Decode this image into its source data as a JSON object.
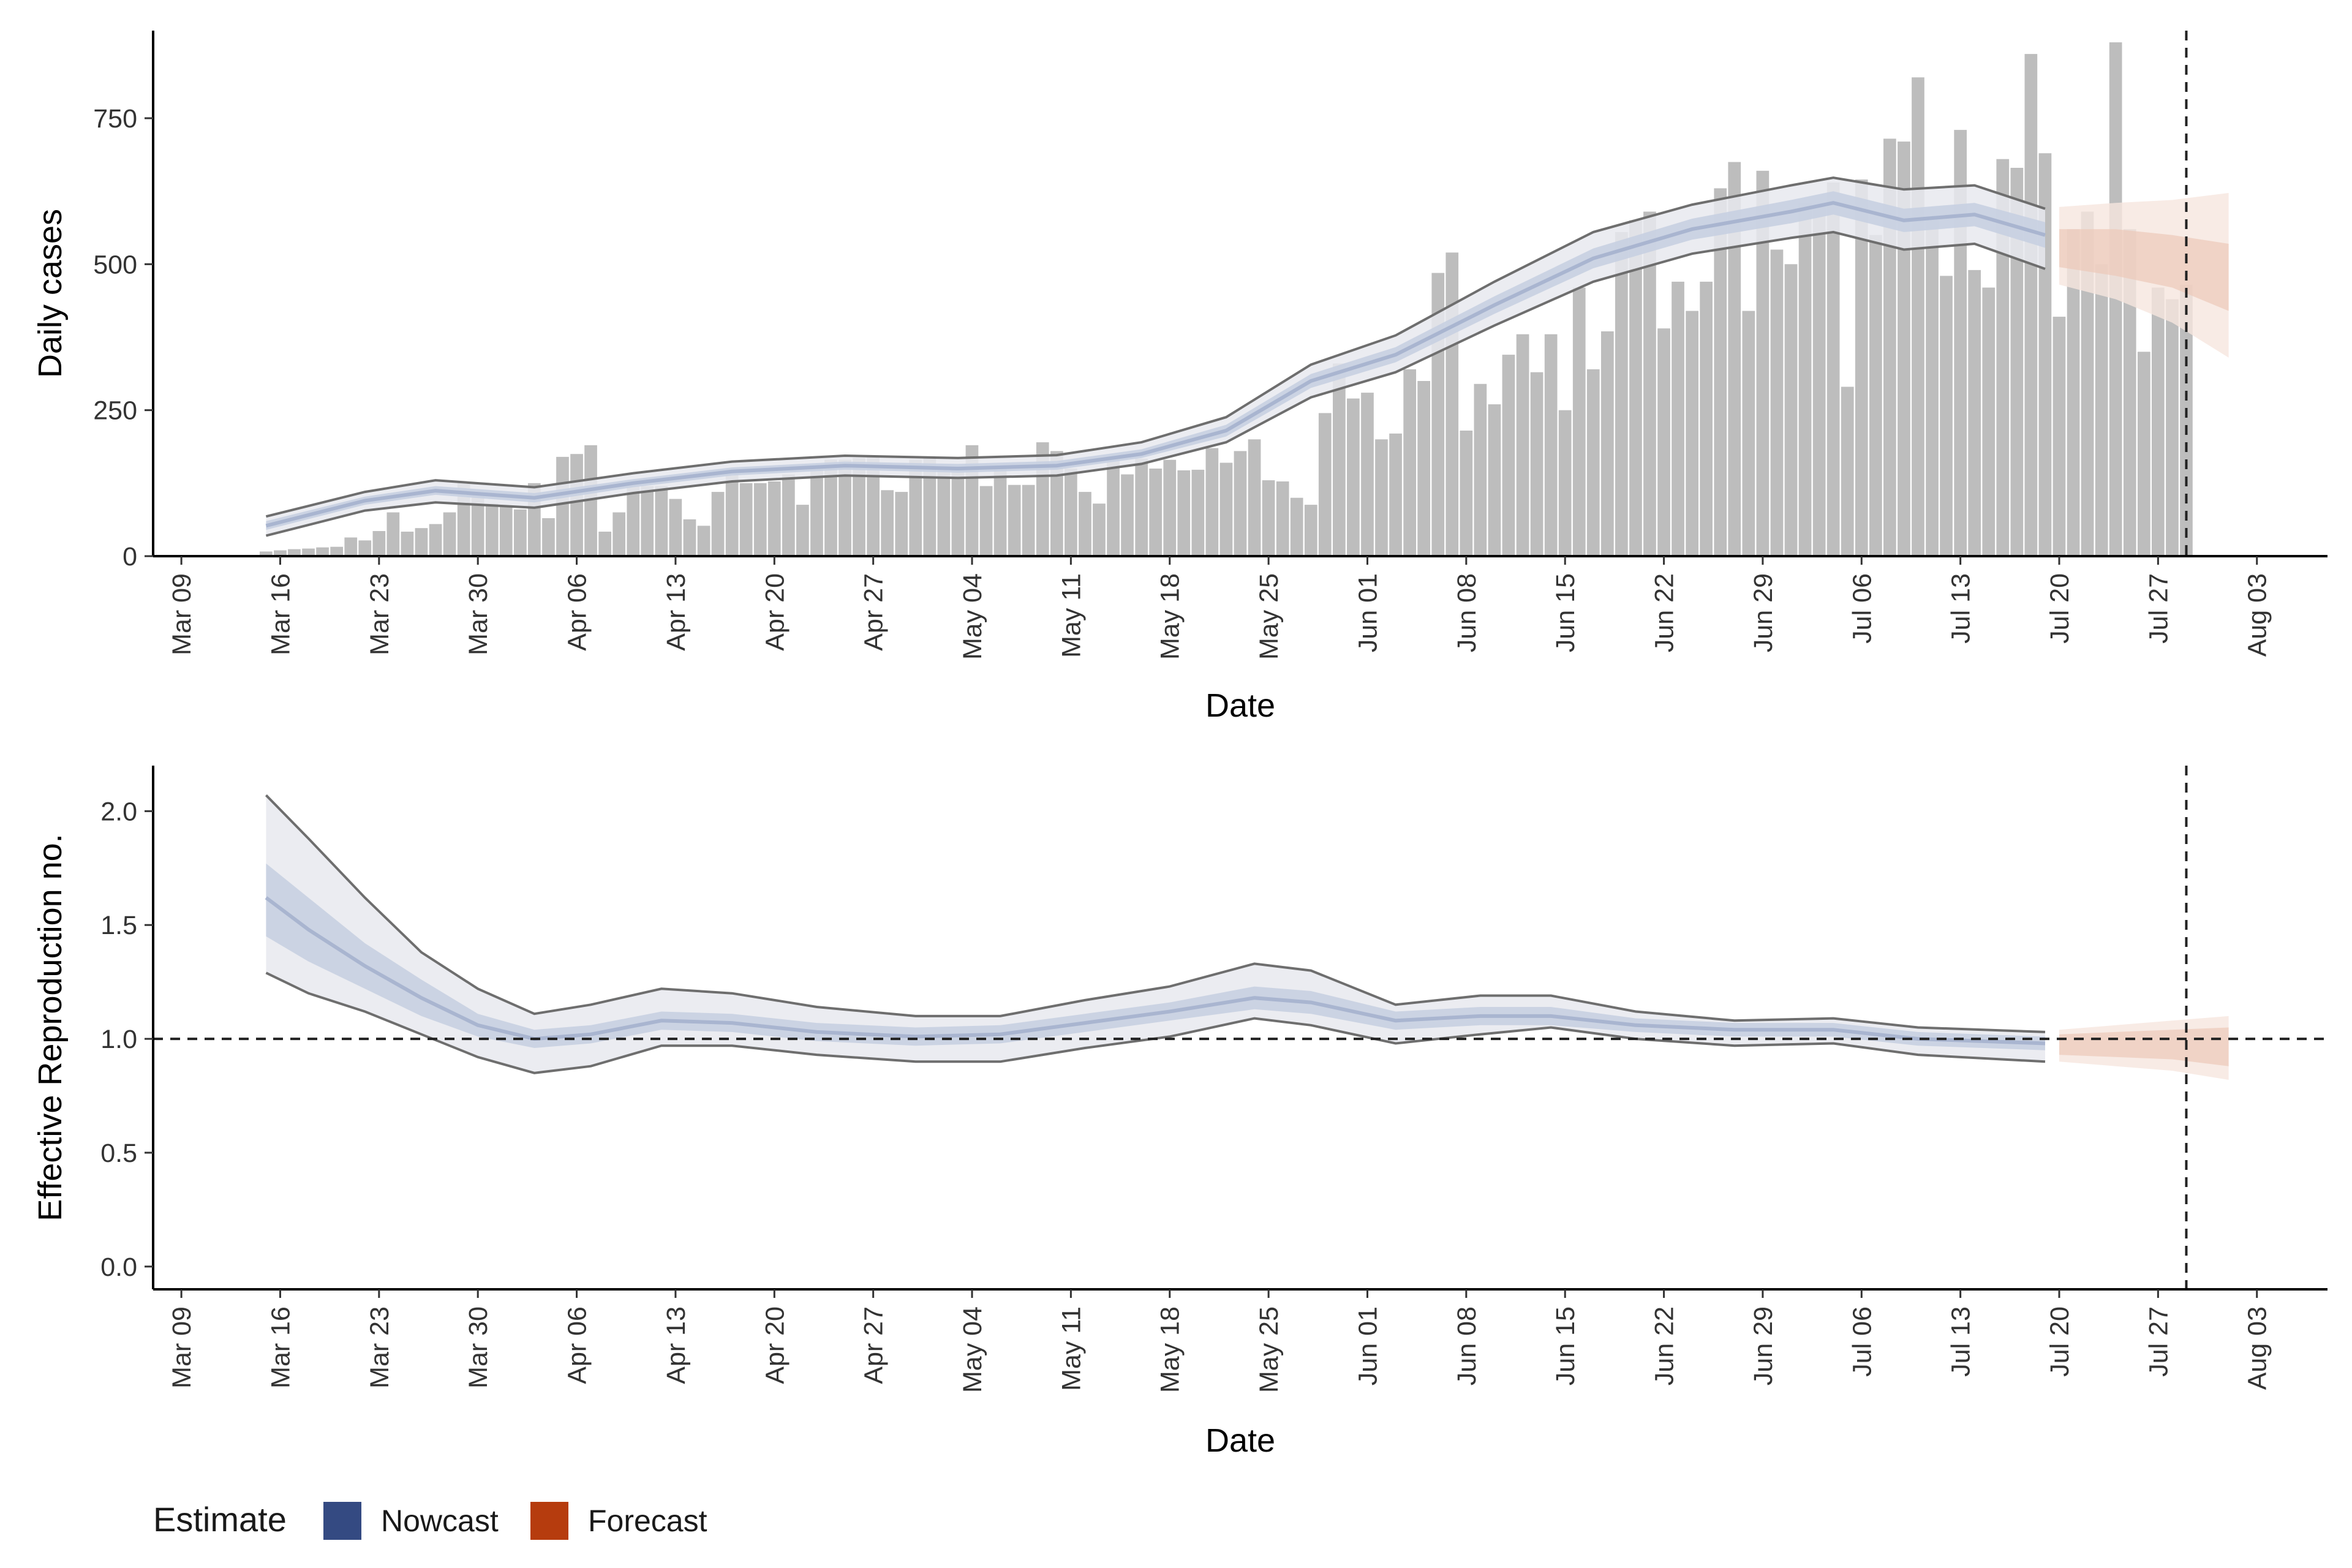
{
  "chart_data": [
    {
      "type": "bar",
      "xlabel": "Date",
      "ylabel": "Daily cases",
      "ylim": [
        0,
        900
      ],
      "yticks": [
        0,
        250,
        500,
        750
      ],
      "xlim": [
        "2020-03-07",
        "2020-08-08"
      ],
      "xticks": [
        "Mar 09",
        "Mar 16",
        "Mar 23",
        "Mar 30",
        "Apr 06",
        "Apr 13",
        "Apr 20",
        "Apr 27",
        "May 04",
        "May 11",
        "May 18",
        "May 25",
        "Jun 01",
        "Jun 08",
        "Jun 15",
        "Jun 22",
        "Jun 29",
        "Jul 06",
        "Jul 13",
        "Jul 20",
        "Jul 27",
        "Aug 03"
      ],
      "xticks_dates": [
        "2020-03-09",
        "2020-03-16",
        "2020-03-23",
        "2020-03-30",
        "2020-04-06",
        "2020-04-13",
        "2020-04-20",
        "2020-04-27",
        "2020-05-04",
        "2020-05-11",
        "2020-05-18",
        "2020-05-25",
        "2020-06-01",
        "2020-06-08",
        "2020-06-15",
        "2020-06-22",
        "2020-06-29",
        "2020-07-06",
        "2020-07-13",
        "2020-07-20",
        "2020-07-27",
        "2020-08-03"
      ],
      "bars": {
        "start_date": "2020-03-15",
        "values": [
          8,
          10,
          12,
          13,
          15,
          16,
          32,
          27,
          43,
          75,
          42,
          48,
          55,
          75,
          125,
          110,
          90,
          85,
          80,
          125,
          65,
          170,
          175,
          190,
          42,
          75,
          120,
          120,
          120,
          98,
          63,
          52,
          110,
          140,
          125,
          125,
          128,
          140,
          88,
          150,
          165,
          165,
          168,
          170,
          113,
          110,
          165,
          170,
          150,
          150,
          190,
          120,
          155,
          122,
          122,
          195,
          180,
          150,
          110,
          90,
          170,
          140,
          167,
          150,
          165,
          147,
          148,
          185,
          160,
          180,
          200,
          130,
          128,
          100,
          88,
          245,
          330,
          270,
          280,
          200,
          210,
          320,
          300,
          485,
          520,
          215,
          295,
          260,
          345,
          380,
          315,
          380,
          250,
          460,
          320,
          385,
          555,
          575,
          590,
          390,
          470,
          420,
          470,
          630,
          675,
          420,
          660,
          525,
          500,
          605,
          600,
          640,
          290,
          645,
          550,
          715,
          710,
          820,
          580,
          480,
          730,
          490,
          460,
          680,
          665,
          860,
          690,
          410,
          560,
          590,
          500,
          880,
          560,
          350,
          460,
          440,
          465
        ]
      },
      "series": [
        {
          "name": "Nowcast",
          "start_date": "2020-03-15",
          "x_dates": [
            "2020-03-15",
            "2020-03-22",
            "2020-03-27",
            "2020-04-03",
            "2020-04-10",
            "2020-04-17",
            "2020-04-25",
            "2020-05-03",
            "2020-05-10",
            "2020-05-16",
            "2020-05-22",
            "2020-05-28",
            "2020-06-03",
            "2020-06-10",
            "2020-06-17",
            "2020-06-24",
            "2020-07-01",
            "2020-07-04",
            "2020-07-09",
            "2020-07-14",
            "2020-07-19"
          ],
          "median": [
            52,
            95,
            112,
            100,
            125,
            145,
            155,
            150,
            155,
            175,
            215,
            300,
            345,
            430,
            510,
            560,
            590,
            605,
            575,
            585,
            550
          ],
          "ci50": [
            [
              45,
              60
            ],
            [
              88,
              102
            ],
            [
              105,
              120
            ],
            [
              92,
              108
            ],
            [
              118,
              132
            ],
            [
              138,
              152
            ],
            [
              148,
              162
            ],
            [
              143,
              158
            ],
            [
              148,
              163
            ],
            [
              168,
              183
            ],
            [
              205,
              225
            ],
            [
              288,
              312
            ],
            [
              332,
              358
            ],
            [
              415,
              445
            ],
            [
              493,
              527
            ],
            [
              542,
              578
            ],
            [
              570,
              610
            ],
            [
              585,
              625
            ],
            [
              555,
              595
            ],
            [
              565,
              605
            ],
            [
              528,
              572
            ]
          ],
          "ci90": [
            [
              35,
              68
            ],
            [
              78,
              110
            ],
            [
              92,
              130
            ],
            [
              83,
              118
            ],
            [
              108,
              142
            ],
            [
              128,
              162
            ],
            [
              138,
              172
            ],
            [
              134,
              168
            ],
            [
              138,
              173
            ],
            [
              158,
              195
            ],
            [
              195,
              238
            ],
            [
              272,
              328
            ],
            [
              315,
              378
            ],
            [
              395,
              470
            ],
            [
              470,
              555
            ],
            [
              518,
              602
            ],
            [
              545,
              635
            ],
            [
              555,
              648
            ],
            [
              525,
              628
            ],
            [
              535,
              635
            ],
            [
              492,
              595
            ]
          ]
        },
        {
          "name": "Forecast",
          "x_dates": [
            "2020-07-20",
            "2020-07-24",
            "2020-07-28",
            "2020-08-01"
          ],
          "median": [
            530,
            520,
            505,
            480
          ],
          "ci50": [
            [
              495,
              560
            ],
            [
              480,
              560
            ],
            [
              460,
              550
            ],
            [
              420,
              535
            ]
          ],
          "ci90": [
            [
              465,
              598
            ],
            [
              440,
              605
            ],
            [
              400,
              610
            ],
            [
              340,
              622
            ]
          ]
        }
      ],
      "vline_date": "2020-07-29",
      "hline": null
    },
    {
      "type": "line",
      "xlabel": "Date",
      "ylabel": "Effective Reproduction no.",
      "ylim": [
        -0.1,
        2.2
      ],
      "yticks": [
        0.0,
        0.5,
        1.0,
        1.5,
        2.0
      ],
      "ytick_labels": [
        "0.0",
        "0.5",
        "1.0",
        "1.5",
        "2.0"
      ],
      "xlim": [
        "2020-03-07",
        "2020-08-08"
      ],
      "xticks": [
        "Mar 09",
        "Mar 16",
        "Mar 23",
        "Mar 30",
        "Apr 06",
        "Apr 13",
        "Apr 20",
        "Apr 27",
        "May 04",
        "May 11",
        "May 18",
        "May 25",
        "Jun 01",
        "Jun 08",
        "Jun 15",
        "Jun 22",
        "Jun 29",
        "Jul 06",
        "Jul 13",
        "Jul 20",
        "Jul 27",
        "Aug 03"
      ],
      "xticks_dates": [
        "2020-03-09",
        "2020-03-16",
        "2020-03-23",
        "2020-03-30",
        "2020-04-06",
        "2020-04-13",
        "2020-04-20",
        "2020-04-27",
        "2020-05-04",
        "2020-05-11",
        "2020-05-18",
        "2020-05-25",
        "2020-06-01",
        "2020-06-08",
        "2020-06-15",
        "2020-06-22",
        "2020-06-29",
        "2020-07-06",
        "2020-07-13",
        "2020-07-20",
        "2020-07-27",
        "2020-08-03"
      ],
      "series": [
        {
          "name": "Nowcast",
          "x_dates": [
            "2020-03-15",
            "2020-03-18",
            "2020-03-22",
            "2020-03-26",
            "2020-03-30",
            "2020-04-03",
            "2020-04-07",
            "2020-04-12",
            "2020-04-17",
            "2020-04-23",
            "2020-04-30",
            "2020-05-06",
            "2020-05-12",
            "2020-05-18",
            "2020-05-24",
            "2020-05-28",
            "2020-06-03",
            "2020-06-09",
            "2020-06-14",
            "2020-06-20",
            "2020-06-27",
            "2020-07-04",
            "2020-07-10",
            "2020-07-19"
          ],
          "median": [
            1.62,
            1.48,
            1.32,
            1.18,
            1.06,
            1.0,
            1.02,
            1.08,
            1.07,
            1.03,
            1.01,
            1.02,
            1.07,
            1.12,
            1.18,
            1.16,
            1.08,
            1.1,
            1.1,
            1.06,
            1.04,
            1.04,
            1.0,
            0.98
          ],
          "ci50": [
            [
              1.45,
              1.77
            ],
            [
              1.34,
              1.62
            ],
            [
              1.22,
              1.42
            ],
            [
              1.1,
              1.26
            ],
            [
              1.01,
              1.11
            ],
            [
              0.96,
              1.04
            ],
            [
              0.98,
              1.06
            ],
            [
              1.04,
              1.12
            ],
            [
              1.03,
              1.11
            ],
            [
              0.99,
              1.07
            ],
            [
              0.97,
              1.05
            ],
            [
              0.98,
              1.06
            ],
            [
              1.03,
              1.11
            ],
            [
              1.08,
              1.16
            ],
            [
              1.13,
              1.23
            ],
            [
              1.11,
              1.21
            ],
            [
              1.04,
              1.12
            ],
            [
              1.06,
              1.14
            ],
            [
              1.06,
              1.14
            ],
            [
              1.03,
              1.09
            ],
            [
              1.01,
              1.07
            ],
            [
              1.01,
              1.07
            ],
            [
              0.97,
              1.03
            ],
            [
              0.95,
              1.01
            ]
          ],
          "ci90": [
            [
              1.29,
              2.07
            ],
            [
              1.2,
              1.88
            ],
            [
              1.12,
              1.62
            ],
            [
              1.02,
              1.38
            ],
            [
              0.92,
              1.22
            ],
            [
              0.85,
              1.11
            ],
            [
              0.88,
              1.15
            ],
            [
              0.97,
              1.22
            ],
            [
              0.97,
              1.2
            ],
            [
              0.93,
              1.14
            ],
            [
              0.9,
              1.1
            ],
            [
              0.9,
              1.1
            ],
            [
              0.96,
              1.17
            ],
            [
              1.01,
              1.23
            ],
            [
              1.09,
              1.33
            ],
            [
              1.06,
              1.3
            ],
            [
              0.98,
              1.15
            ],
            [
              1.02,
              1.19
            ],
            [
              1.05,
              1.19
            ],
            [
              1.0,
              1.12
            ],
            [
              0.97,
              1.08
            ],
            [
              0.98,
              1.09
            ],
            [
              0.93,
              1.05
            ],
            [
              0.9,
              1.03
            ]
          ]
        },
        {
          "name": "Forecast",
          "x_dates": [
            "2020-07-20",
            "2020-07-24",
            "2020-07-28",
            "2020-08-01"
          ],
          "median": [
            0.98,
            0.98,
            0.98,
            0.97
          ],
          "ci50": [
            [
              0.93,
              1.02
            ],
            [
              0.92,
              1.03
            ],
            [
              0.91,
              1.04
            ],
            [
              0.88,
              1.05
            ]
          ],
          "ci90": [
            [
              0.9,
              1.04
            ],
            [
              0.88,
              1.06
            ],
            [
              0.86,
              1.08
            ],
            [
              0.82,
              1.1
            ]
          ]
        }
      ],
      "vline_date": "2020-07-29",
      "hline": 1.0
    }
  ],
  "legend": {
    "title": "Estimate",
    "items": [
      {
        "label": "Nowcast",
        "color": "#344a82"
      },
      {
        "label": "Forecast",
        "color": "#b63c0e"
      }
    ]
  },
  "colors": {
    "bar": "#bdbdbd",
    "nowcast_ci90": "#e8e9ef",
    "nowcast_ci50": "#c6cfe0",
    "nowcast_median": "#a9b5d0",
    "forecast_ci90": "#f6e6df",
    "forecast_ci50": "#ecc9b9",
    "bound_line": "#6e6e6e",
    "axis": "#000000",
    "dash": "#222222"
  }
}
